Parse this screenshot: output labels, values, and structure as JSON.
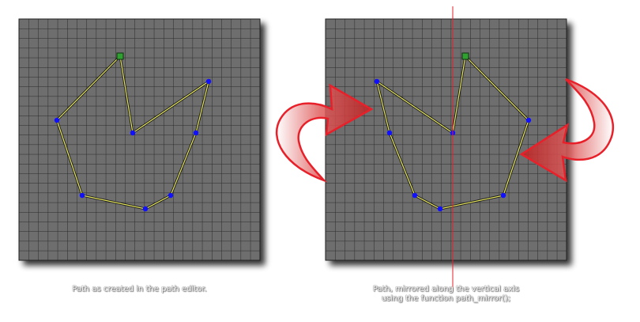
{
  "colors": {
    "grid_background": "#6e6e6e",
    "grid_line": "#2a2a2a",
    "path_line": "#e8e860",
    "path_point": "#1010ff",
    "start_point": "#30a030",
    "mirror_axis": "#e8202a",
    "arrow_fill": "#e06060",
    "caption_text": "#ffffff"
  },
  "panels": {
    "left": {
      "caption_line1": "Path as created in the path editor.",
      "caption_line2": ""
    },
    "right": {
      "caption_line1": "Path, mirrored along the vertical axis",
      "caption_line2": "using the function path_mirror();"
    }
  },
  "icons": {
    "left_arrow": "curved-arrow-icon",
    "right_arrow": "curved-arrow-icon",
    "start_point": "square-point-icon",
    "path_point": "circle-point-icon"
  }
}
